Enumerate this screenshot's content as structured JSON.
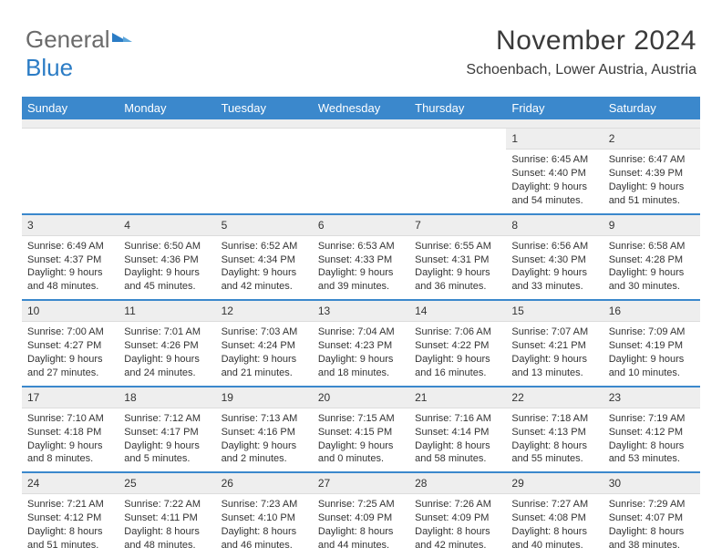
{
  "brand": {
    "text1": "General",
    "text2": "Blue"
  },
  "title": {
    "month_year": "November 2024",
    "location": "Schoenbach, Lower Austria, Austria"
  },
  "colors": {
    "header_bg": "#3b88cc",
    "header_text": "#ffffff",
    "daynum_bg": "#eeeeee",
    "text": "#333333",
    "page_bg": "#ffffff",
    "week_rule": "#3b88cc"
  },
  "day_names": [
    "Sunday",
    "Monday",
    "Tuesday",
    "Wednesday",
    "Thursday",
    "Friday",
    "Saturday"
  ],
  "weeks": [
    [
      {
        "empty": true
      },
      {
        "empty": true
      },
      {
        "empty": true
      },
      {
        "empty": true
      },
      {
        "empty": true
      },
      {
        "num": "1",
        "sunrise": "Sunrise: 6:45 AM",
        "sunset": "Sunset: 4:40 PM",
        "daylight": "Daylight: 9 hours and 54 minutes."
      },
      {
        "num": "2",
        "sunrise": "Sunrise: 6:47 AM",
        "sunset": "Sunset: 4:39 PM",
        "daylight": "Daylight: 9 hours and 51 minutes."
      }
    ],
    [
      {
        "num": "3",
        "sunrise": "Sunrise: 6:49 AM",
        "sunset": "Sunset: 4:37 PM",
        "daylight": "Daylight: 9 hours and 48 minutes."
      },
      {
        "num": "4",
        "sunrise": "Sunrise: 6:50 AM",
        "sunset": "Sunset: 4:36 PM",
        "daylight": "Daylight: 9 hours and 45 minutes."
      },
      {
        "num": "5",
        "sunrise": "Sunrise: 6:52 AM",
        "sunset": "Sunset: 4:34 PM",
        "daylight": "Daylight: 9 hours and 42 minutes."
      },
      {
        "num": "6",
        "sunrise": "Sunrise: 6:53 AM",
        "sunset": "Sunset: 4:33 PM",
        "daylight": "Daylight: 9 hours and 39 minutes."
      },
      {
        "num": "7",
        "sunrise": "Sunrise: 6:55 AM",
        "sunset": "Sunset: 4:31 PM",
        "daylight": "Daylight: 9 hours and 36 minutes."
      },
      {
        "num": "8",
        "sunrise": "Sunrise: 6:56 AM",
        "sunset": "Sunset: 4:30 PM",
        "daylight": "Daylight: 9 hours and 33 minutes."
      },
      {
        "num": "9",
        "sunrise": "Sunrise: 6:58 AM",
        "sunset": "Sunset: 4:28 PM",
        "daylight": "Daylight: 9 hours and 30 minutes."
      }
    ],
    [
      {
        "num": "10",
        "sunrise": "Sunrise: 7:00 AM",
        "sunset": "Sunset: 4:27 PM",
        "daylight": "Daylight: 9 hours and 27 minutes."
      },
      {
        "num": "11",
        "sunrise": "Sunrise: 7:01 AM",
        "sunset": "Sunset: 4:26 PM",
        "daylight": "Daylight: 9 hours and 24 minutes."
      },
      {
        "num": "12",
        "sunrise": "Sunrise: 7:03 AM",
        "sunset": "Sunset: 4:24 PM",
        "daylight": "Daylight: 9 hours and 21 minutes."
      },
      {
        "num": "13",
        "sunrise": "Sunrise: 7:04 AM",
        "sunset": "Sunset: 4:23 PM",
        "daylight": "Daylight: 9 hours and 18 minutes."
      },
      {
        "num": "14",
        "sunrise": "Sunrise: 7:06 AM",
        "sunset": "Sunset: 4:22 PM",
        "daylight": "Daylight: 9 hours and 16 minutes."
      },
      {
        "num": "15",
        "sunrise": "Sunrise: 7:07 AM",
        "sunset": "Sunset: 4:21 PM",
        "daylight": "Daylight: 9 hours and 13 minutes."
      },
      {
        "num": "16",
        "sunrise": "Sunrise: 7:09 AM",
        "sunset": "Sunset: 4:19 PM",
        "daylight": "Daylight: 9 hours and 10 minutes."
      }
    ],
    [
      {
        "num": "17",
        "sunrise": "Sunrise: 7:10 AM",
        "sunset": "Sunset: 4:18 PM",
        "daylight": "Daylight: 9 hours and 8 minutes."
      },
      {
        "num": "18",
        "sunrise": "Sunrise: 7:12 AM",
        "sunset": "Sunset: 4:17 PM",
        "daylight": "Daylight: 9 hours and 5 minutes."
      },
      {
        "num": "19",
        "sunrise": "Sunrise: 7:13 AM",
        "sunset": "Sunset: 4:16 PM",
        "daylight": "Daylight: 9 hours and 2 minutes."
      },
      {
        "num": "20",
        "sunrise": "Sunrise: 7:15 AM",
        "sunset": "Sunset: 4:15 PM",
        "daylight": "Daylight: 9 hours and 0 minutes."
      },
      {
        "num": "21",
        "sunrise": "Sunrise: 7:16 AM",
        "sunset": "Sunset: 4:14 PM",
        "daylight": "Daylight: 8 hours and 58 minutes."
      },
      {
        "num": "22",
        "sunrise": "Sunrise: 7:18 AM",
        "sunset": "Sunset: 4:13 PM",
        "daylight": "Daylight: 8 hours and 55 minutes."
      },
      {
        "num": "23",
        "sunrise": "Sunrise: 7:19 AM",
        "sunset": "Sunset: 4:12 PM",
        "daylight": "Daylight: 8 hours and 53 minutes."
      }
    ],
    [
      {
        "num": "24",
        "sunrise": "Sunrise: 7:21 AM",
        "sunset": "Sunset: 4:12 PM",
        "daylight": "Daylight: 8 hours and 51 minutes."
      },
      {
        "num": "25",
        "sunrise": "Sunrise: 7:22 AM",
        "sunset": "Sunset: 4:11 PM",
        "daylight": "Daylight: 8 hours and 48 minutes."
      },
      {
        "num": "26",
        "sunrise": "Sunrise: 7:23 AM",
        "sunset": "Sunset: 4:10 PM",
        "daylight": "Daylight: 8 hours and 46 minutes."
      },
      {
        "num": "27",
        "sunrise": "Sunrise: 7:25 AM",
        "sunset": "Sunset: 4:09 PM",
        "daylight": "Daylight: 8 hours and 44 minutes."
      },
      {
        "num": "28",
        "sunrise": "Sunrise: 7:26 AM",
        "sunset": "Sunset: 4:09 PM",
        "daylight": "Daylight: 8 hours and 42 minutes."
      },
      {
        "num": "29",
        "sunrise": "Sunrise: 7:27 AM",
        "sunset": "Sunset: 4:08 PM",
        "daylight": "Daylight: 8 hours and 40 minutes."
      },
      {
        "num": "30",
        "sunrise": "Sunrise: 7:29 AM",
        "sunset": "Sunset: 4:07 PM",
        "daylight": "Daylight: 8 hours and 38 minutes."
      }
    ]
  ]
}
